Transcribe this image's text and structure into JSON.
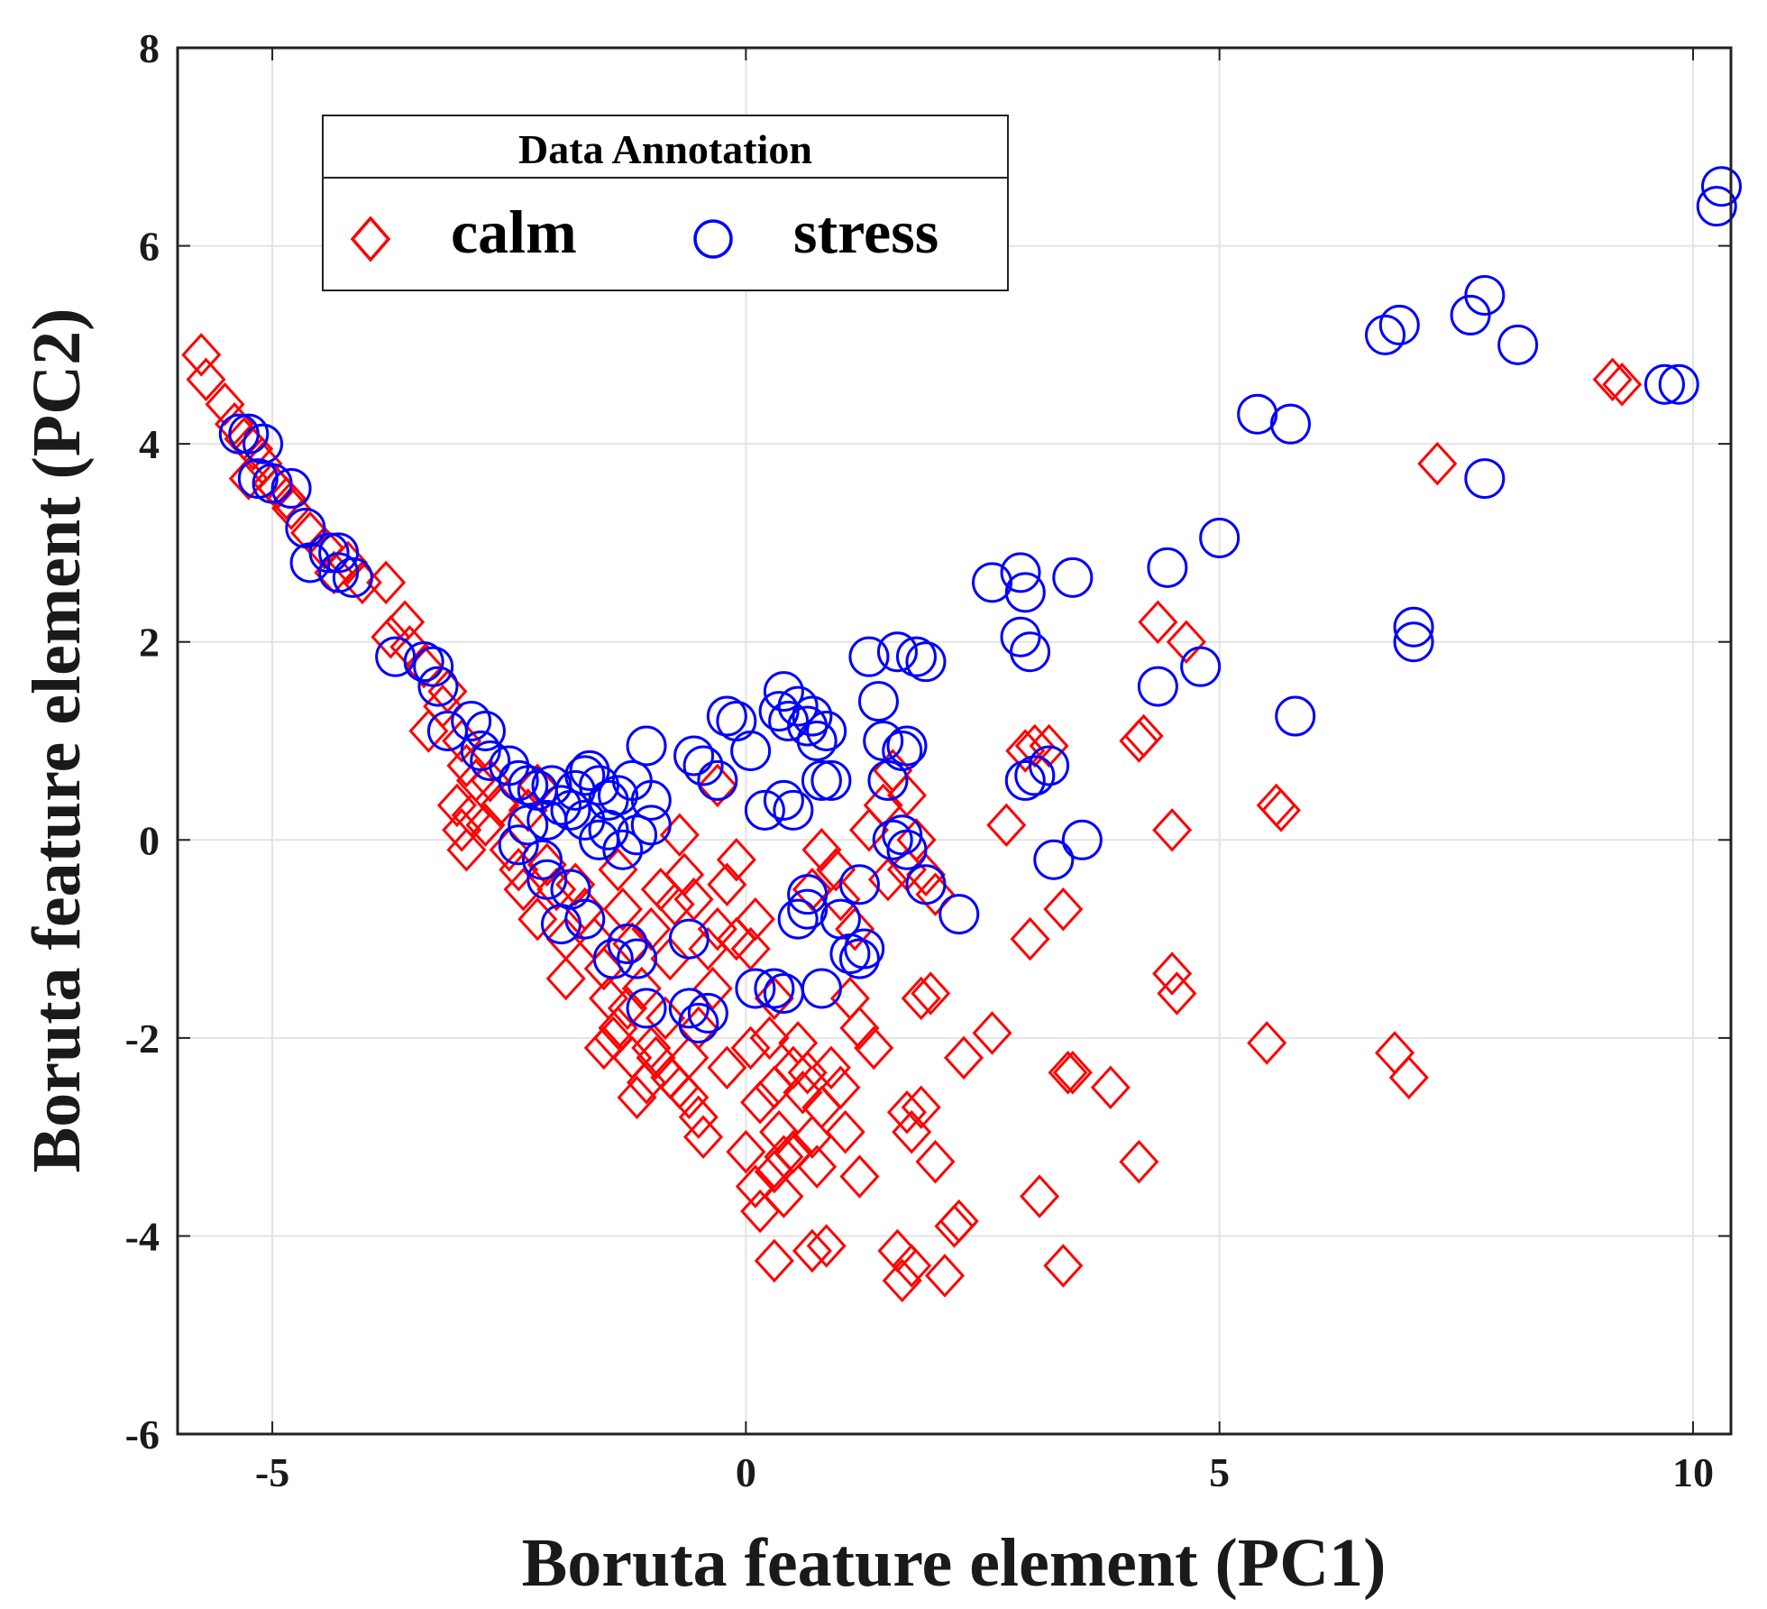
{
  "chart_data": {
    "type": "scatter",
    "title": "",
    "xlabel": "Boruta feature element (PC1)",
    "ylabel": "Boruta feature element (PC2)",
    "xlim": [
      -6,
      10.4
    ],
    "ylim": [
      -6,
      8
    ],
    "xticks": [
      -5,
      0,
      5,
      10
    ],
    "yticks": [
      -6,
      -4,
      -2,
      0,
      2,
      4,
      6,
      8
    ],
    "xtick_labels": [
      "-5",
      "0",
      "5",
      "10"
    ],
    "ytick_labels": [
      "-6",
      "-4",
      "-2",
      "0",
      "2",
      "4",
      "6",
      "8"
    ],
    "grid": true,
    "legend": {
      "title": "Data Annotation",
      "placement": "top-left",
      "orientation": "horizontal",
      "entries": [
        "calm",
        "stress"
      ]
    },
    "series": [
      {
        "name": "calm",
        "marker": "diamond",
        "color": "#ff0000",
        "points": [
          [
            -5.75,
            4.9
          ],
          [
            -5.7,
            4.65
          ],
          [
            -5.5,
            4.4
          ],
          [
            -5.4,
            4.2
          ],
          [
            -5.3,
            4.05
          ],
          [
            -5.2,
            3.95
          ],
          [
            -5.1,
            3.8
          ],
          [
            -5.25,
            3.65
          ],
          [
            -5.0,
            3.6
          ],
          [
            -4.95,
            3.55
          ],
          [
            -4.85,
            3.45
          ],
          [
            -4.8,
            3.35
          ],
          [
            -4.6,
            3.1
          ],
          [
            -4.45,
            2.95
          ],
          [
            -4.35,
            2.7
          ],
          [
            -4.2,
            2.8
          ],
          [
            -4.05,
            2.6
          ],
          [
            -3.8,
            2.6
          ],
          [
            -3.6,
            2.2
          ],
          [
            -3.75,
            2.05
          ],
          [
            -3.55,
            1.95
          ],
          [
            -3.4,
            1.75
          ],
          [
            -3.15,
            1.5
          ],
          [
            -3.2,
            1.35
          ],
          [
            -3.35,
            1.1
          ],
          [
            -3.0,
            1.0
          ],
          [
            -2.95,
            0.75
          ],
          [
            -2.85,
            0.6
          ],
          [
            -3.05,
            0.35
          ],
          [
            -2.9,
            0.25
          ],
          [
            -3.0,
            0.1
          ],
          [
            -2.95,
            -0.1
          ],
          [
            -2.7,
            0.6
          ],
          [
            -2.6,
            0.35
          ],
          [
            -2.75,
            0.15
          ],
          [
            -2.5,
            -0.1
          ],
          [
            -2.4,
            -0.3
          ],
          [
            -2.35,
            -0.5
          ],
          [
            -2.2,
            0.55
          ],
          [
            -2.3,
            0.3
          ],
          [
            -2.1,
            -0.25
          ],
          [
            -2.0,
            -0.5
          ],
          [
            -2.2,
            -0.8
          ],
          [
            -1.9,
            -1.0
          ],
          [
            -1.9,
            -1.4
          ],
          [
            -1.8,
            -0.45
          ],
          [
            -1.7,
            -0.7
          ],
          [
            -1.6,
            -1.0
          ],
          [
            -1.5,
            -1.3
          ],
          [
            -1.45,
            -1.6
          ],
          [
            -1.35,
            -1.9
          ],
          [
            -1.5,
            -2.1
          ],
          [
            -1.4,
            -2.0
          ],
          [
            -1.25,
            -1.7
          ],
          [
            -1.2,
            -2.2
          ],
          [
            -1.1,
            -1.5
          ],
          [
            -1.0,
            -2.1
          ],
          [
            -1.05,
            -2.45
          ],
          [
            -1.15,
            -2.6
          ],
          [
            -0.95,
            -2.2
          ],
          [
            -0.85,
            -1.8
          ],
          [
            -0.8,
            -2.4
          ],
          [
            -0.7,
            -2.5
          ],
          [
            -0.6,
            -2.6
          ],
          [
            -0.5,
            -2.8
          ],
          [
            -0.45,
            -3.0
          ],
          [
            -0.6,
            -2.2
          ],
          [
            -0.5,
            -1.9
          ],
          [
            -0.35,
            -1.5
          ],
          [
            -0.2,
            -2.3
          ],
          [
            -0.4,
            -1.1
          ],
          [
            -0.3,
            -0.9
          ],
          [
            -0.55,
            -0.6
          ],
          [
            -0.2,
            -0.45
          ],
          [
            -0.1,
            -0.2
          ],
          [
            -0.65,
            -0.35
          ],
          [
            -0.75,
            -0.65
          ],
          [
            -0.9,
            -0.5
          ],
          [
            -1.0,
            -0.9
          ],
          [
            -0.8,
            -1.2
          ],
          [
            -1.3,
            -0.7
          ],
          [
            -1.2,
            -1.05
          ],
          [
            -1.35,
            -0.3
          ],
          [
            -0.7,
            0.05
          ],
          [
            -0.3,
            0.55
          ],
          [
            0.05,
            -2.1
          ],
          [
            0.15,
            -2.65
          ],
          [
            0.25,
            -2.0
          ],
          [
            0.3,
            -2.5
          ],
          [
            0.35,
            -2.95
          ],
          [
            0.4,
            -3.2
          ],
          [
            0.0,
            -3.15
          ],
          [
            0.1,
            -3.5
          ],
          [
            0.15,
            -3.75
          ],
          [
            0.3,
            -3.35
          ],
          [
            0.5,
            -2.3
          ],
          [
            0.55,
            -2.05
          ],
          [
            0.6,
            -2.55
          ],
          [
            0.65,
            -2.35
          ],
          [
            0.7,
            -3.0
          ],
          [
            0.5,
            -3.15
          ],
          [
            0.4,
            -3.6
          ],
          [
            0.75,
            -3.3
          ],
          [
            0.3,
            -4.25
          ],
          [
            0.7,
            -4.15
          ],
          [
            0.85,
            -4.1
          ],
          [
            0.8,
            -2.7
          ],
          [
            0.9,
            -2.3
          ],
          [
            1.0,
            -2.5
          ],
          [
            1.05,
            -2.95
          ],
          [
            1.2,
            -3.4
          ],
          [
            1.1,
            -1.6
          ],
          [
            1.2,
            -1.9
          ],
          [
            1.35,
            -2.1
          ],
          [
            0.05,
            -1.1
          ],
          [
            0.1,
            -0.8
          ],
          [
            -0.1,
            -1.0
          ],
          [
            0.3,
            -1.6
          ],
          [
            0.8,
            -0.1
          ],
          [
            0.95,
            -0.3
          ],
          [
            0.7,
            -0.5
          ],
          [
            1.0,
            -0.6
          ],
          [
            1.15,
            -0.9
          ],
          [
            1.3,
            0.1
          ],
          [
            1.45,
            0.35
          ],
          [
            1.55,
            0.7
          ],
          [
            1.7,
            0.45
          ],
          [
            1.8,
            0.0
          ],
          [
            1.7,
            -0.3
          ],
          [
            1.5,
            -0.4
          ],
          [
            1.9,
            -0.35
          ],
          [
            2.0,
            -0.55
          ],
          [
            1.85,
            -1.6
          ],
          [
            1.95,
            -1.55
          ],
          [
            1.7,
            -2.75
          ],
          [
            1.75,
            -2.95
          ],
          [
            1.85,
            -2.7
          ],
          [
            2.0,
            -3.25
          ],
          [
            1.6,
            -4.15
          ],
          [
            1.65,
            -4.45
          ],
          [
            1.75,
            -4.3
          ],
          [
            2.1,
            -4.4
          ],
          [
            2.2,
            -3.9
          ],
          [
            2.25,
            -3.85
          ],
          [
            2.3,
            -2.2
          ],
          [
            2.6,
            -1.95
          ],
          [
            2.75,
            0.15
          ],
          [
            2.95,
            0.9
          ],
          [
            3.05,
            0.95
          ],
          [
            3.2,
            0.95
          ],
          [
            3.0,
            -1.0
          ],
          [
            3.35,
            -0.7
          ],
          [
            3.1,
            -3.6
          ],
          [
            3.4,
            -2.35
          ],
          [
            3.45,
            -2.35
          ],
          [
            3.85,
            -2.5
          ],
          [
            3.35,
            -4.3
          ],
          [
            4.15,
            1.0
          ],
          [
            4.2,
            1.05
          ],
          [
            4.35,
            2.2
          ],
          [
            4.65,
            2.0
          ],
          [
            4.5,
            0.1
          ],
          [
            4.5,
            -1.35
          ],
          [
            4.55,
            -1.55
          ],
          [
            4.15,
            -3.25
          ],
          [
            5.5,
            -2.05
          ],
          [
            5.6,
            0.35
          ],
          [
            5.65,
            0.3
          ],
          [
            6.85,
            -2.15
          ],
          [
            7.0,
            -2.4
          ],
          [
            7.3,
            3.8
          ],
          [
            9.15,
            4.65
          ],
          [
            9.25,
            4.6
          ]
        ]
      },
      {
        "name": "stress",
        "marker": "circle",
        "color": "#0000ff",
        "points": [
          [
            -5.35,
            4.1
          ],
          [
            -5.25,
            4.1
          ],
          [
            -5.1,
            4.0
          ],
          [
            -5.15,
            3.65
          ],
          [
            -5.0,
            3.6
          ],
          [
            -4.8,
            3.55
          ],
          [
            -4.65,
            3.15
          ],
          [
            -4.6,
            2.8
          ],
          [
            -4.4,
            2.9
          ],
          [
            -4.3,
            2.9
          ],
          [
            -4.3,
            2.7
          ],
          [
            -4.15,
            2.65
          ],
          [
            -3.7,
            1.85
          ],
          [
            -3.4,
            1.8
          ],
          [
            -3.3,
            1.75
          ],
          [
            -3.25,
            1.55
          ],
          [
            -3.15,
            1.1
          ],
          [
            -2.9,
            1.2
          ],
          [
            -2.75,
            1.1
          ],
          [
            -2.8,
            0.9
          ],
          [
            -2.7,
            0.8
          ],
          [
            -2.5,
            0.75
          ],
          [
            -2.4,
            0.6
          ],
          [
            -2.3,
            0.55
          ],
          [
            -2.2,
            0.5
          ],
          [
            -2.05,
            0.55
          ],
          [
            -1.95,
            0.35
          ],
          [
            -1.8,
            0.5
          ],
          [
            -1.7,
            0.65
          ],
          [
            -1.65,
            0.7
          ],
          [
            -1.55,
            0.55
          ],
          [
            -1.45,
            0.4
          ],
          [
            -1.35,
            0.45
          ],
          [
            -1.2,
            0.6
          ],
          [
            -1.05,
            0.95
          ],
          [
            -1.0,
            0.4
          ],
          [
            -1.0,
            0.15
          ],
          [
            -1.15,
            0.05
          ],
          [
            -1.3,
            -0.1
          ],
          [
            -1.45,
            0.1
          ],
          [
            -1.55,
            0.0
          ],
          [
            -1.7,
            0.2
          ],
          [
            -1.85,
            0.3
          ],
          [
            -2.1,
            0.2
          ],
          [
            -2.3,
            0.15
          ],
          [
            -2.4,
            -0.05
          ],
          [
            -2.15,
            -0.2
          ],
          [
            -2.1,
            -0.4
          ],
          [
            -1.85,
            -0.5
          ],
          [
            -1.95,
            -0.85
          ],
          [
            -1.7,
            -0.8
          ],
          [
            -1.4,
            -1.2
          ],
          [
            -1.25,
            -1.05
          ],
          [
            -1.15,
            -1.2
          ],
          [
            -1.05,
            -1.7
          ],
          [
            -0.6,
            -1.0
          ],
          [
            -0.6,
            -1.7
          ],
          [
            -0.5,
            -1.85
          ],
          [
            -0.4,
            -1.75
          ],
          [
            -0.55,
            0.85
          ],
          [
            -0.45,
            0.75
          ],
          [
            -0.3,
            0.6
          ],
          [
            -0.2,
            1.25
          ],
          [
            -0.1,
            1.2
          ],
          [
            0.05,
            0.9
          ],
          [
            0.2,
            0.3
          ],
          [
            0.35,
            1.3
          ],
          [
            0.4,
            1.5
          ],
          [
            0.45,
            1.2
          ],
          [
            0.55,
            1.35
          ],
          [
            0.65,
            1.15
          ],
          [
            0.7,
            1.25
          ],
          [
            0.75,
            1.0
          ],
          [
            0.85,
            1.1
          ],
          [
            0.4,
            0.4
          ],
          [
            0.5,
            0.3
          ],
          [
            0.8,
            0.6
          ],
          [
            0.9,
            0.6
          ],
          [
            0.1,
            -1.5
          ],
          [
            0.3,
            -1.5
          ],
          [
            0.4,
            -1.55
          ],
          [
            0.55,
            -0.8
          ],
          [
            0.65,
            -0.55
          ],
          [
            0.8,
            -1.5
          ],
          [
            0.65,
            -0.7
          ],
          [
            1.0,
            -0.8
          ],
          [
            1.1,
            -1.15
          ],
          [
            1.2,
            -1.2
          ],
          [
            1.25,
            -1.1
          ],
          [
            1.2,
            -0.45
          ],
          [
            1.3,
            1.85
          ],
          [
            1.4,
            1.4
          ],
          [
            1.45,
            1.0
          ],
          [
            1.5,
            0.6
          ],
          [
            1.55,
            0.0
          ],
          [
            1.65,
            0.05
          ],
          [
            1.7,
            -0.1
          ],
          [
            1.65,
            0.9
          ],
          [
            1.7,
            0.95
          ],
          [
            1.6,
            1.9
          ],
          [
            1.8,
            1.85
          ],
          [
            1.9,
            1.8
          ],
          [
            1.9,
            -0.45
          ],
          [
            2.25,
            -0.75
          ],
          [
            2.6,
            2.6
          ],
          [
            2.9,
            2.7
          ],
          [
            2.95,
            2.5
          ],
          [
            2.9,
            2.05
          ],
          [
            3.0,
            1.9
          ],
          [
            2.95,
            0.6
          ],
          [
            3.05,
            0.65
          ],
          [
            3.2,
            0.75
          ],
          [
            3.25,
            -0.2
          ],
          [
            3.45,
            2.65
          ],
          [
            3.55,
            0.0
          ],
          [
            4.35,
            1.55
          ],
          [
            4.45,
            2.75
          ],
          [
            4.8,
            1.75
          ],
          [
            5.0,
            3.05
          ],
          [
            5.4,
            4.3
          ],
          [
            5.75,
            4.2
          ],
          [
            5.8,
            1.25
          ],
          [
            6.75,
            5.1
          ],
          [
            6.9,
            5.2
          ],
          [
            7.05,
            2.15
          ],
          [
            7.05,
            2.0
          ],
          [
            7.65,
            5.3
          ],
          [
            7.8,
            5.5
          ],
          [
            7.8,
            3.65
          ],
          [
            8.15,
            5.0
          ],
          [
            9.7,
            4.6
          ],
          [
            9.85,
            4.6
          ],
          [
            10.25,
            6.4
          ],
          [
            10.3,
            6.6
          ]
        ]
      }
    ]
  }
}
